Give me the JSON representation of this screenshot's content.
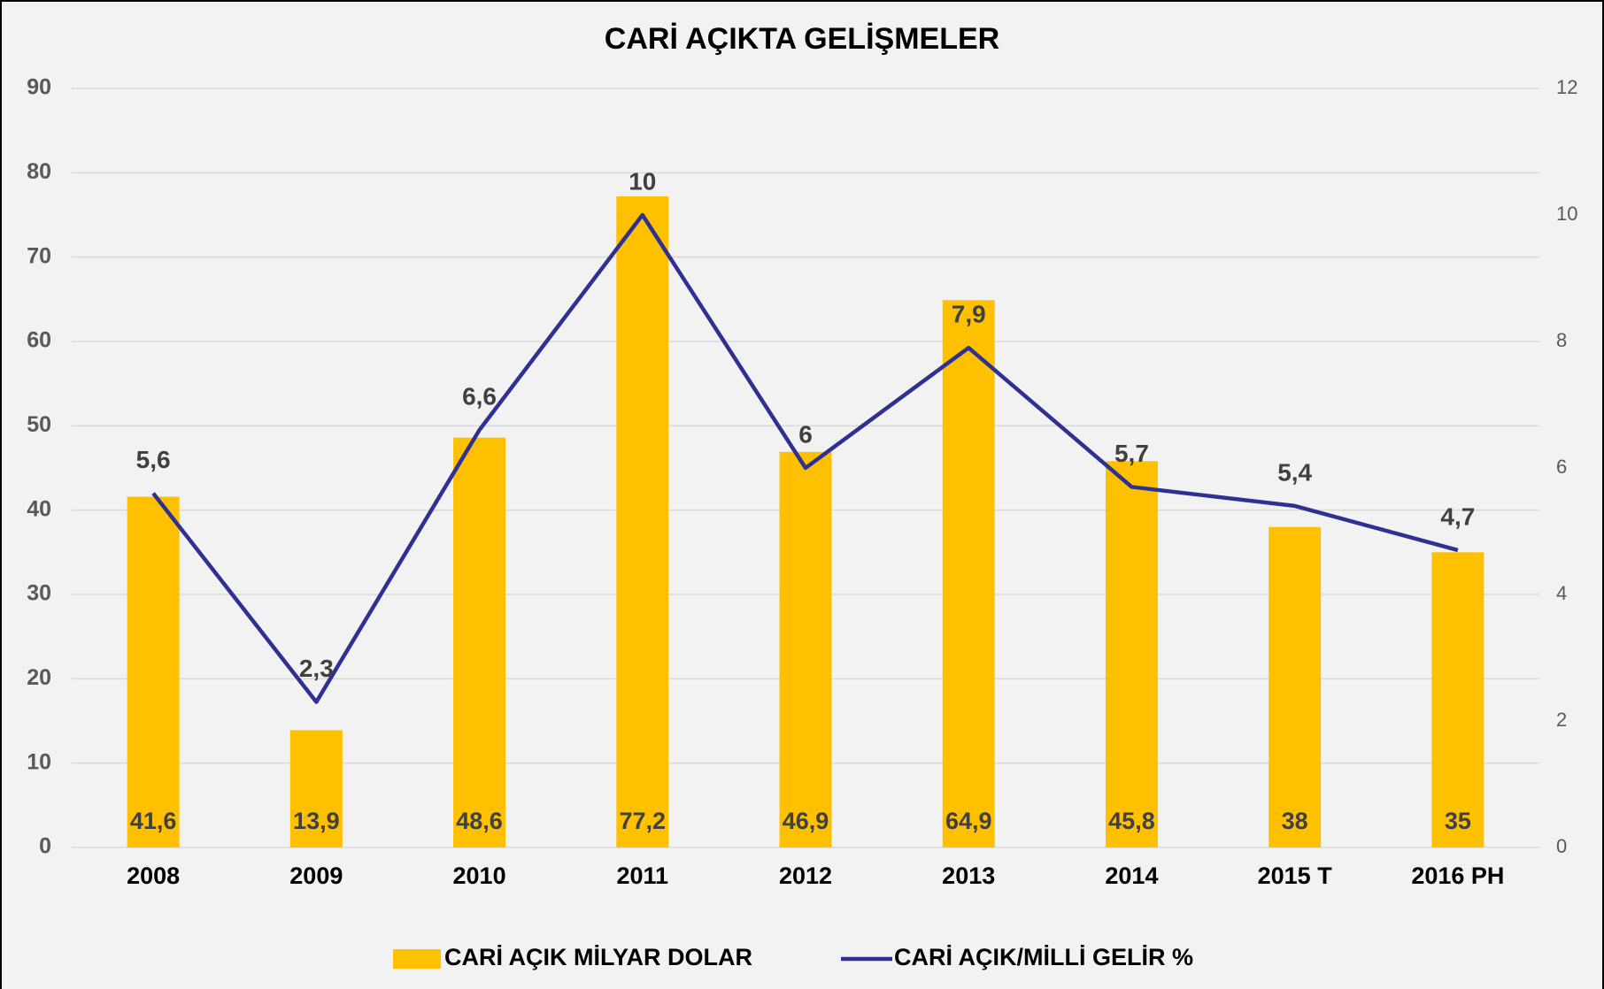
{
  "chart_data": {
    "type": "bar_line",
    "title": "CARİ AÇIKTA GELİŞMELER",
    "categories": [
      "2008",
      "2009",
      "2010",
      "2011",
      "2012",
      "2013",
      "2014",
      "2015 T",
      "2016 PH"
    ],
    "series": [
      {
        "name": "CARİ AÇIK MİLYAR DOLAR",
        "type": "bar",
        "color": "#ffc000",
        "values": [
          41.6,
          13.9,
          48.6,
          77.2,
          46.9,
          64.9,
          45.8,
          38,
          35
        ],
        "value_labels": [
          "41,6",
          "13,9",
          "48,6",
          "77,2",
          "46,9",
          "64,9",
          "45,8",
          "38",
          "35"
        ]
      },
      {
        "name": "CARİ AÇIK/MİLLİ GELİR %",
        "type": "line",
        "color": "#2e3192",
        "axis": "y2",
        "values": [
          5.6,
          2.3,
          6.6,
          10,
          6,
          7.9,
          5.7,
          5.4,
          4.7
        ],
        "value_labels": [
          "5,6",
          "2,3",
          "6,6",
          "10",
          "6",
          "7,9",
          "5,7",
          "5,4",
          "4,7"
        ]
      }
    ],
    "ylim": [
      0,
      90
    ],
    "yticks": [
      0,
      10,
      20,
      30,
      40,
      50,
      60,
      70,
      80,
      90
    ],
    "y2lim": [
      0,
      12
    ],
    "y2ticks": [
      0,
      2,
      4,
      6,
      8,
      10,
      12
    ],
    "grid": true,
    "legend": "bottom"
  }
}
